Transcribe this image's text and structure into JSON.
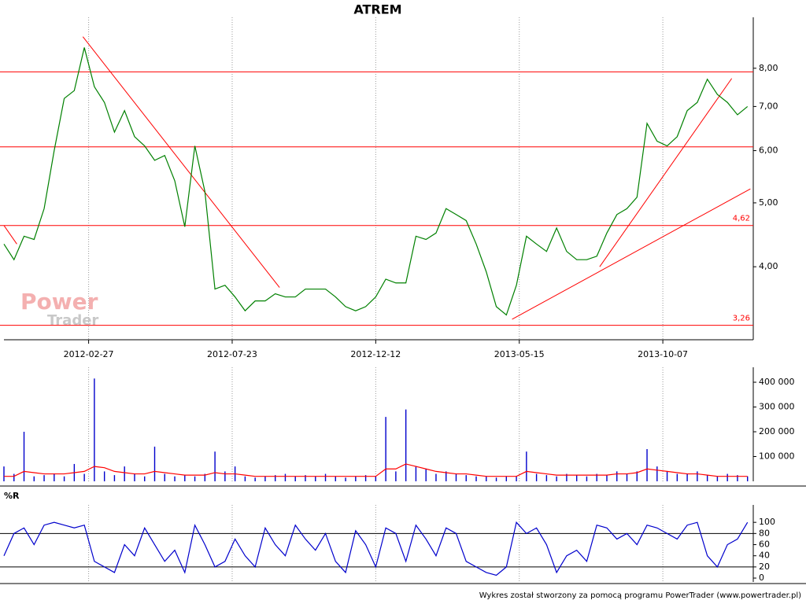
{
  "chart_data": [
    {
      "type": "line",
      "title": "ATREM",
      "log": true,
      "color": "#008000",
      "x": [
        0,
        7,
        14,
        21,
        28,
        35,
        42,
        49,
        56,
        63,
        70,
        77,
        84,
        91,
        98,
        105,
        112,
        119,
        126,
        133,
        140,
        147,
        154,
        161,
        168,
        175,
        182,
        189,
        196,
        203,
        210,
        217,
        224,
        231,
        238,
        245,
        252,
        259,
        266,
        273,
        280,
        287,
        294,
        301,
        308,
        315,
        322,
        329,
        336,
        343,
        350,
        357,
        364,
        371,
        378,
        385,
        392,
        399,
        406,
        413,
        420,
        427,
        434,
        441,
        448,
        455,
        462,
        469,
        476,
        483,
        490,
        497,
        504,
        511,
        518
      ],
      "values": [
        4.33,
        4.1,
        4.45,
        4.4,
        4.9,
        6.0,
        7.2,
        7.4,
        8.6,
        7.5,
        7.1,
        6.4,
        6.9,
        6.3,
        6.1,
        5.8,
        5.9,
        5.4,
        4.6,
        6.1,
        5.2,
        3.7,
        3.75,
        3.6,
        3.43,
        3.55,
        3.55,
        3.64,
        3.6,
        3.6,
        3.7,
        3.7,
        3.7,
        3.6,
        3.48,
        3.43,
        3.48,
        3.6,
        3.83,
        3.78,
        3.78,
        4.45,
        4.4,
        4.5,
        4.9,
        4.8,
        4.7,
        4.33,
        3.93,
        3.48,
        3.38,
        3.75,
        4.45,
        4.33,
        4.22,
        4.58,
        4.22,
        4.1,
        4.1,
        4.15,
        4.5,
        4.8,
        4.9,
        5.1,
        6.6,
        6.2,
        6.1,
        6.3,
        6.9,
        7.1,
        7.7,
        7.3,
        7.1,
        6.8,
        7.0
      ],
      "xlim": [
        0,
        522
      ],
      "xticks": [
        {
          "value": 59,
          "label": "2012-02-27"
        },
        {
          "value": 159,
          "label": "2012-07-23"
        },
        {
          "value": 259,
          "label": "2012-12-12"
        },
        {
          "value": 359,
          "label": "2013-05-15"
        },
        {
          "value": 459,
          "label": "2013-10-07"
        }
      ],
      "ylim": [
        3.1,
        9.35
      ],
      "yticks": [
        {
          "value": 4,
          "label": "4,00"
        },
        {
          "value": 5,
          "label": "5,00"
        },
        {
          "value": 6,
          "label": "6,00"
        },
        {
          "value": 7,
          "label": "7,00"
        },
        {
          "value": 8,
          "label": "8,00"
        }
      ],
      "hlines": [
        {
          "value": 3.26,
          "label": "3,26"
        },
        {
          "value": 4.62,
          "label": "4,62"
        },
        6.08,
        7.9
      ],
      "trendlines": [
        {
          "x": [
            55,
            192
          ],
          "y": [
            8.93,
            3.72
          ]
        },
        {
          "x": [
            354,
            520
          ],
          "y": [
            3.33,
            5.25
          ]
        },
        {
          "x": [
            415,
            507
          ],
          "y": [
            4.0,
            7.72
          ]
        },
        {
          "x": [
            0,
            9
          ],
          "y": [
            4.62,
            4.33
          ]
        }
      ],
      "line_color": "#ff0000",
      "watermark": [
        "Power",
        "Trader"
      ]
    },
    {
      "type": "bar",
      "color": "#0000cc",
      "average_color": "#ff0000",
      "values": [
        60000,
        30000,
        200000,
        20000,
        25000,
        30000,
        20000,
        70000,
        30000,
        415000,
        40000,
        25000,
        60000,
        30000,
        20000,
        140000,
        30000,
        20000,
        25000,
        20000,
        30000,
        120000,
        40000,
        60000,
        20000,
        15000,
        20000,
        25000,
        30000,
        20000,
        25000,
        20000,
        30000,
        20000,
        15000,
        20000,
        25000,
        20000,
        260000,
        40000,
        290000,
        60000,
        50000,
        30000,
        40000,
        30000,
        25000,
        20000,
        20000,
        15000,
        20000,
        20000,
        120000,
        30000,
        25000,
        20000,
        30000,
        25000,
        20000,
        30000,
        25000,
        40000,
        30000,
        40000,
        130000,
        60000,
        40000,
        30000,
        30000,
        40000,
        25000,
        20000,
        30000,
        25000,
        20000
      ],
      "average": [
        20000,
        20000,
        40000,
        35000,
        30000,
        30000,
        30000,
        35000,
        40000,
        60000,
        55000,
        40000,
        35000,
        30000,
        30000,
        40000,
        35000,
        30000,
        25000,
        25000,
        25000,
        35000,
        30000,
        30000,
        25000,
        20000,
        20000,
        20000,
        20000,
        20000,
        20000,
        20000,
        20000,
        20000,
        20000,
        20000,
        20000,
        20000,
        50000,
        50000,
        70000,
        60000,
        50000,
        40000,
        35000,
        30000,
        30000,
        25000,
        20000,
        20000,
        20000,
        20000,
        40000,
        35000,
        30000,
        25000,
        25000,
        25000,
        25000,
        25000,
        25000,
        30000,
        30000,
        35000,
        50000,
        45000,
        40000,
        35000,
        30000,
        30000,
        25000,
        20000,
        20000,
        20000,
        20000
      ],
      "ylim": [
        0,
        435000
      ],
      "yticks": [
        {
          "value": 100000,
          "label": "100 000"
        },
        {
          "value": 200000,
          "label": "200 000"
        },
        {
          "value": 300000,
          "label": "300 000"
        },
        {
          "value": 400000,
          "label": "400 000"
        }
      ]
    },
    {
      "type": "line",
      "title": "%R",
      "color": "#0000cc",
      "values": [
        40,
        80,
        90,
        60,
        95,
        100,
        95,
        90,
        95,
        30,
        20,
        10,
        60,
        40,
        90,
        60,
        30,
        50,
        10,
        95,
        60,
        20,
        30,
        70,
        40,
        20,
        90,
        60,
        40,
        95,
        70,
        50,
        80,
        30,
        10,
        85,
        60,
        20,
        90,
        80,
        30,
        95,
        70,
        40,
        90,
        80,
        30,
        20,
        10,
        5,
        20,
        100,
        80,
        90,
        60,
        10,
        40,
        50,
        30,
        95,
        90,
        70,
        80,
        60,
        95,
        90,
        80,
        70,
        95,
        100,
        40,
        20,
        60,
        70,
        100
      ],
      "ylim": [
        -7,
        120
      ],
      "yticks": [
        0,
        20,
        40,
        60,
        80,
        100
      ],
      "levels": [
        20,
        80
      ]
    }
  ],
  "footer": "Wykres został stworzony za pomocą programu PowerTrader (www.powertrader.pl)"
}
